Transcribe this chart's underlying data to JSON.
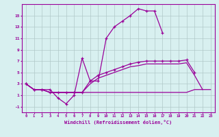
{
  "xlabel": "Windchill (Refroidissement éolien,°C)",
  "x": [
    0,
    1,
    2,
    3,
    4,
    5,
    6,
    7,
    8,
    9,
    10,
    11,
    12,
    13,
    14,
    15,
    16,
    17,
    18,
    19,
    20,
    21,
    22,
    23
  ],
  "line1_y": [
    3.0,
    2.0,
    2.0,
    2.0,
    0.5,
    -0.5,
    1.0,
    7.5,
    3.5,
    3.5,
    11.0,
    13.0,
    14.0,
    15.0,
    16.2,
    15.8,
    15.8,
    12.0,
    null,
    null,
    null,
    null,
    null,
    null
  ],
  "line2_y": [
    3.0,
    2.0,
    2.0,
    1.5,
    1.5,
    1.5,
    1.5,
    1.5,
    3.5,
    4.5,
    5.0,
    5.5,
    6.0,
    6.5,
    6.8,
    7.0,
    7.0,
    7.0,
    7.0,
    7.0,
    7.2,
    5.0,
    null,
    null
  ],
  "line3_y": [
    3.0,
    2.0,
    2.0,
    1.5,
    1.5,
    1.5,
    1.5,
    1.5,
    3.0,
    4.0,
    4.5,
    5.0,
    5.5,
    6.0,
    6.2,
    6.5,
    6.5,
    6.5,
    6.5,
    6.5,
    6.7,
    4.5,
    2.0,
    null
  ],
  "line4_y": [
    3.0,
    2.0,
    2.0,
    1.5,
    1.5,
    1.5,
    1.5,
    1.5,
    1.5,
    1.5,
    1.5,
    1.5,
    1.5,
    1.5,
    1.5,
    1.5,
    1.5,
    1.5,
    1.5,
    1.5,
    1.5,
    2.0,
    2.0,
    2.0
  ],
  "line_color": "#990099",
  "bg_color": "#d8f0f0",
  "grid_color": "#b0c8c8",
  "ylim": [
    -2,
    17
  ],
  "yticks": [
    -1,
    1,
    3,
    5,
    7,
    9,
    11,
    13,
    15
  ],
  "xticks": [
    0,
    1,
    2,
    3,
    4,
    5,
    6,
    7,
    8,
    9,
    10,
    11,
    12,
    13,
    14,
    15,
    16,
    17,
    18,
    19,
    20,
    21,
    22,
    23
  ]
}
